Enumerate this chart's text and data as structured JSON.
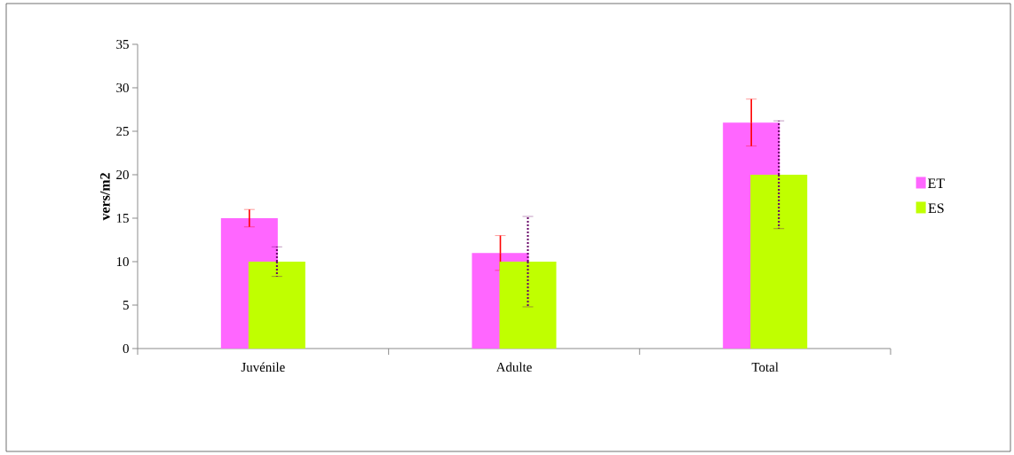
{
  "chart_data": {
    "type": "bar",
    "ylabel": "vers/m2",
    "categories": [
      "Juvénile",
      "Adulte",
      "Total"
    ],
    "series": [
      {
        "name": "ET",
        "color": "#ff66ff",
        "values": [
          15,
          11,
          26
        ],
        "errors": [
          1,
          2,
          2.7
        ]
      },
      {
        "name": "ES",
        "color": "#c0ff00",
        "values": [
          10,
          10,
          20
        ],
        "errors": [
          1.7,
          5.2,
          6.2
        ]
      }
    ],
    "ylim": [
      0,
      35
    ],
    "yticks": [
      0,
      5,
      10,
      15,
      20,
      25,
      30,
      35
    ],
    "legend": "right",
    "grid": false
  }
}
